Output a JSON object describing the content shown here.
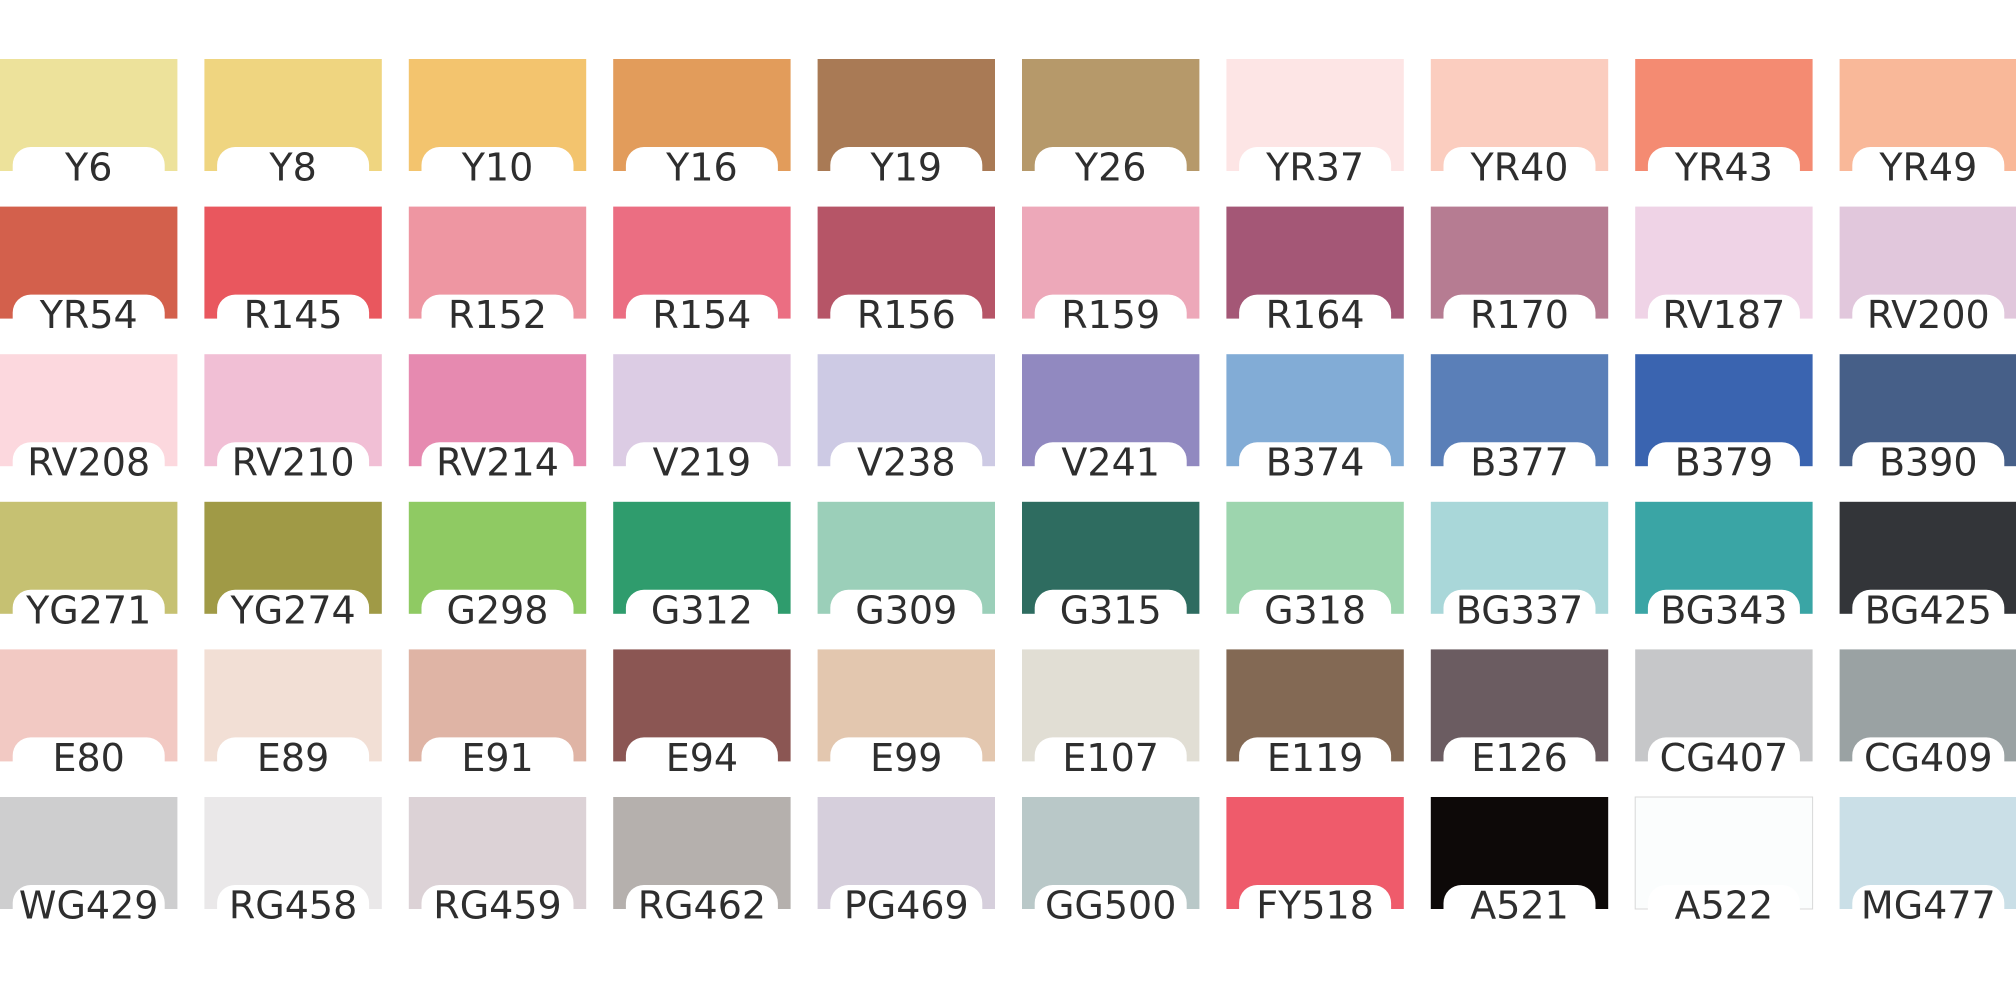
{
  "swatches": [
    [
      {
        "label": "Y6",
        "color": "#ede29b"
      },
      {
        "label": "Y8",
        "color": "#efd580"
      },
      {
        "label": "Y10",
        "color": "#f3c46e"
      },
      {
        "label": "Y16",
        "color": "#e29c5b"
      },
      {
        "label": "Y19",
        "color": "#a97a55"
      },
      {
        "label": "Y26",
        "color": "#b6996a"
      },
      {
        "label": "YR37",
        "color": "#fde5e5"
      },
      {
        "label": "YR40",
        "color": "#fbcdbf"
      },
      {
        "label": "YR43",
        "color": "#f48b72"
      },
      {
        "label": "YR49",
        "color": "#f9b899"
      }
    ],
    [
      {
        "label": "YR54",
        "color": "#d3604c"
      },
      {
        "label": "R145",
        "color": "#e9575e"
      },
      {
        "label": "R152",
        "color": "#ee96a2"
      },
      {
        "label": "R154",
        "color": "#eb6e82"
      },
      {
        "label": "R156",
        "color": "#b65567"
      },
      {
        "label": "R159",
        "color": "#eda8b9"
      },
      {
        "label": "R164",
        "color": "#a45776"
      },
      {
        "label": "R170",
        "color": "#b67c92"
      },
      {
        "label": "RV187",
        "color": "#efd3e6"
      },
      {
        "label": "RV200",
        "color": "#e1c7dc"
      }
    ],
    [
      {
        "label": "RV208",
        "color": "#fcd8de"
      },
      {
        "label": "RV210",
        "color": "#f1bfd5"
      },
      {
        "label": "RV214",
        "color": "#e68ab0"
      },
      {
        "label": "V219",
        "color": "#dccce4"
      },
      {
        "label": "V238",
        "color": "#cdcae4"
      },
      {
        "label": "V241",
        "color": "#9189c0"
      },
      {
        "label": "B374",
        "color": "#82acd6"
      },
      {
        "label": "B377",
        "color": "#5a7fb8"
      },
      {
        "label": "B379",
        "color": "#3a64b0"
      },
      {
        "label": "B390",
        "color": "#465f88"
      }
    ],
    [
      {
        "label": "YG271",
        "color": "#c6c172"
      },
      {
        "label": "YG274",
        "color": "#a09a46"
      },
      {
        "label": "G298",
        "color": "#8fca63"
      },
      {
        "label": "G312",
        "color": "#2f9c6d"
      },
      {
        "label": "G309",
        "color": "#9bcfb9"
      },
      {
        "label": "G315",
        "color": "#2e6c60"
      },
      {
        "label": "G318",
        "color": "#9dd5ae"
      },
      {
        "label": "BG337",
        "color": "#a9d7d9"
      },
      {
        "label": "BG343",
        "color": "#3aa5a5"
      },
      {
        "label": "BG425",
        "color": "#333539"
      }
    ],
    [
      {
        "label": "E80",
        "color": "#f2c9c3"
      },
      {
        "label": "E89",
        "color": "#f2dfd5"
      },
      {
        "label": "E91",
        "color": "#dfb4a5"
      },
      {
        "label": "E94",
        "color": "#8b5653"
      },
      {
        "label": "E99",
        "color": "#e3c7af"
      },
      {
        "label": "E107",
        "color": "#e1ded4"
      },
      {
        "label": "E119",
        "color": "#836954"
      },
      {
        "label": "E126",
        "color": "#6b5c61"
      },
      {
        "label": "CG407",
        "color": "#c6c7c9"
      },
      {
        "label": "CG409",
        "color": "#9aa2a3"
      }
    ],
    [
      {
        "label": "WG429",
        "color": "#cececf"
      },
      {
        "label": "RG458",
        "color": "#eae8e9"
      },
      {
        "label": "RG459",
        "color": "#dcd2d6"
      },
      {
        "label": "RG462",
        "color": "#b5b0ad"
      },
      {
        "label": "PG469",
        "color": "#d6cfdc"
      },
      {
        "label": "GG500",
        "color": "#b9c8c8"
      },
      {
        "label": "FY518",
        "color": "#ef5b6b"
      },
      {
        "label": "A521",
        "color": "#0d0908"
      },
      {
        "label": "A522",
        "color": "#fbfdfd"
      },
      {
        "label": "MG477",
        "color": "#cadfe7"
      }
    ]
  ]
}
